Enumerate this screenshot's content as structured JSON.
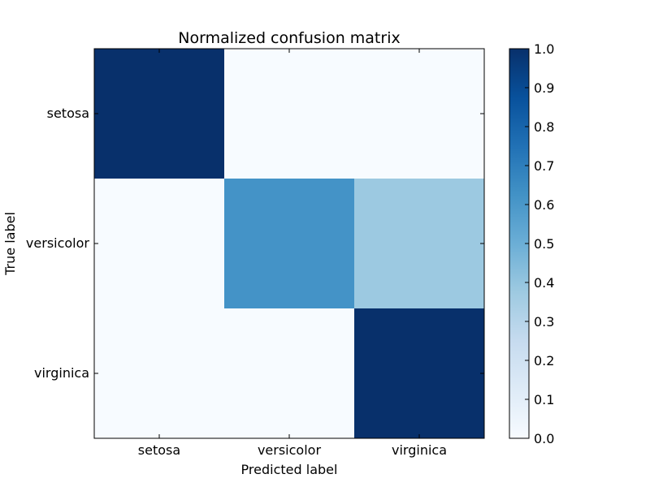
{
  "chart_data": {
    "type": "heatmap",
    "title": "Normalized confusion matrix",
    "xlabel": "Predicted label",
    "ylabel": "True label",
    "x_categories": [
      "setosa",
      "versicolor",
      "virginica"
    ],
    "y_categories": [
      "setosa",
      "versicolor",
      "virginica"
    ],
    "values": [
      [
        1.0,
        0.0,
        0.0
      ],
      [
        0.0,
        0.62,
        0.38
      ],
      [
        0.0,
        0.0,
        1.0
      ]
    ],
    "colormap": "Blues",
    "colorbar": {
      "range": [
        0.0,
        1.0
      ],
      "ticks": [
        "0.0",
        "0.1",
        "0.2",
        "0.3",
        "0.4",
        "0.5",
        "0.6",
        "0.7",
        "0.8",
        "0.9",
        "1.0"
      ]
    },
    "grid": false
  }
}
